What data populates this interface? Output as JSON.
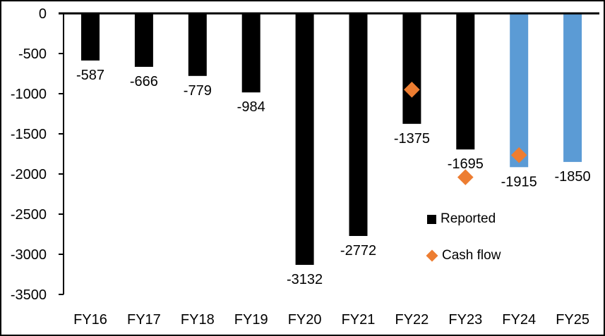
{
  "chart_data": {
    "type": "bar",
    "title": "",
    "xlabel": "",
    "ylabel": "",
    "categories": [
      "FY16",
      "FY17",
      "FY18",
      "FY19",
      "FY20",
      "FY21",
      "FY22",
      "FY23",
      "FY24",
      "FY25"
    ],
    "series": [
      {
        "name": "Reported",
        "type": "bar",
        "values": [
          -587,
          -666,
          -779,
          -984,
          -3132,
          -2772,
          -1375,
          -1695,
          -1915,
          -1850
        ],
        "labels": [
          "-587",
          "-666",
          "-779",
          "-984",
          "-3132",
          "-2772",
          "-1375",
          "-1695",
          "-1915",
          "-1850"
        ],
        "point_colors": [
          "#000000",
          "#000000",
          "#000000",
          "#000000",
          "#000000",
          "#000000",
          "#000000",
          "#000000",
          "#5B9BD5",
          "#5B9BD5"
        ]
      },
      {
        "name": "Cash flow",
        "type": "scatter",
        "marker": "diamond",
        "color": "#ED7D31",
        "values": [
          null,
          null,
          null,
          null,
          null,
          null,
          -950,
          -2040,
          -1765,
          null
        ],
        "values_estimated_from_plot": true
      }
    ],
    "ylim": [
      -3500,
      0
    ],
    "yticks": [
      0,
      -500,
      -1000,
      -1500,
      -2000,
      -2500,
      -3000,
      -3500
    ],
    "ytick_labels": [
      "0",
      "-500",
      "-1000",
      "-1500",
      "-2000",
      "-2500",
      "-3000",
      "-3500"
    ],
    "grid": false,
    "legend": {
      "position": "inside-right",
      "items": [
        {
          "label": "Reported",
          "marker": "square",
          "color": "#000000"
        },
        {
          "label": "Cash flow",
          "marker": "diamond",
          "color": "#ED7D31"
        }
      ]
    }
  },
  "colors": {
    "background": "#FFFFFF",
    "axis": "#000000",
    "bar_black": "#000000",
    "bar_blue": "#5B9BD5",
    "marker_orange": "#ED7D31",
    "border": "#000000"
  }
}
